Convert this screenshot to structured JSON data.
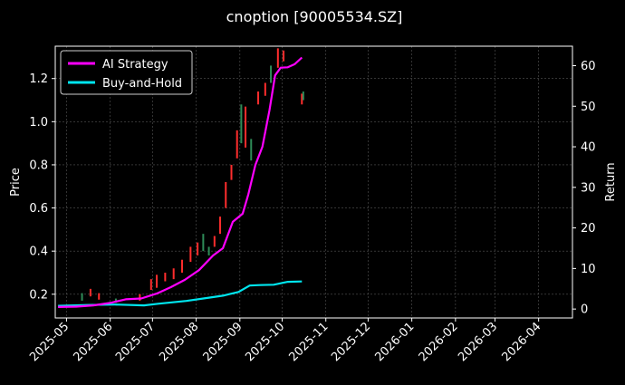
{
  "chart_data": {
    "type": "line",
    "title": "cnoption [90005534.SZ]",
    "ylabel": "Price",
    "y2label": "Return",
    "ylim": [
      0.09,
      1.35
    ],
    "y2lim": [
      -2.2,
      64.8
    ],
    "yticks": [
      "0.2",
      "0.4",
      "0.6",
      "0.8",
      "1.0",
      "1.2"
    ],
    "y2ticks": [
      "0",
      "10",
      "20",
      "30",
      "40",
      "50",
      "60"
    ],
    "xrange": [
      "2025-04-23",
      "2026-04-25"
    ],
    "xticks": [
      "2025-05",
      "2025-06",
      "2025-07",
      "2025-08",
      "2025-09",
      "2025-10",
      "2025-11",
      "2025-12",
      "2026-01",
      "2026-02",
      "2026-03",
      "2026-04"
    ],
    "grid": true,
    "legend_position": "top-left",
    "legend": [
      {
        "label": "AI Strategy",
        "color": "#ff00ff"
      },
      {
        "label": "Buy-and-Hold",
        "color": "#00e5ee"
      }
    ],
    "up_color": "#2e8b57",
    "down_color": "#ff2d2d",
    "series": [
      {
        "name": "AI Strategy",
        "axis": "right",
        "color": "#ff00ff",
        "x": [
          "2025-04-25",
          "2025-05-08",
          "2025-05-20",
          "2025-06-01",
          "2025-06-12",
          "2025-06-23",
          "2025-07-04",
          "2025-07-14",
          "2025-07-24",
          "2025-08-03",
          "2025-08-13",
          "2025-08-20",
          "2025-08-27",
          "2025-09-03",
          "2025-09-07",
          "2025-09-12",
          "2025-09-17",
          "2025-09-22",
          "2025-09-26",
          "2025-09-30",
          "2025-10-05",
          "2025-10-10",
          "2025-10-15"
        ],
        "values": [
          0.5,
          0.6,
          0.9,
          1.5,
          2.4,
          2.6,
          3.8,
          5.4,
          7.2,
          9.6,
          13.2,
          15.0,
          21.5,
          23.5,
          28.3,
          35.5,
          40.0,
          49.0,
          57.6,
          59.5,
          59.6,
          60.4,
          62.0
        ]
      },
      {
        "name": "Buy-and-Hold",
        "axis": "right",
        "color": "#00e5ee",
        "x": [
          "2025-04-25",
          "2025-05-15",
          "2025-06-05",
          "2025-06-25",
          "2025-07-05",
          "2025-07-25",
          "2025-08-10",
          "2025-08-20",
          "2025-08-31",
          "2025-09-08",
          "2025-09-15",
          "2025-09-25",
          "2025-10-05",
          "2025-10-15"
        ],
        "values": [
          0.8,
          1.0,
          1.1,
          0.9,
          1.3,
          2.0,
          2.8,
          3.3,
          4.2,
          5.8,
          5.9,
          6.0,
          6.7,
          6.8
        ]
      }
    ],
    "price_bars": [
      {
        "x": "2025-05-12",
        "low": 0.17,
        "high": 0.205,
        "up": true
      },
      {
        "x": "2025-05-18",
        "low": 0.19,
        "high": 0.225,
        "up": false
      },
      {
        "x": "2025-05-24",
        "low": 0.175,
        "high": 0.205,
        "up": false
      },
      {
        "x": "2025-06-05",
        "low": 0.16,
        "high": 0.18,
        "up": true
      },
      {
        "x": "2025-06-22",
        "low": 0.17,
        "high": 0.2,
        "up": false
      },
      {
        "x": "2025-06-30",
        "low": 0.22,
        "high": 0.27,
        "up": false
      },
      {
        "x": "2025-07-04",
        "low": 0.23,
        "high": 0.29,
        "up": false
      },
      {
        "x": "2025-07-10",
        "low": 0.26,
        "high": 0.3,
        "up": false
      },
      {
        "x": "2025-07-16",
        "low": 0.27,
        "high": 0.32,
        "up": false
      },
      {
        "x": "2025-07-22",
        "low": 0.3,
        "high": 0.36,
        "up": false
      },
      {
        "x": "2025-07-28",
        "low": 0.35,
        "high": 0.42,
        "up": false
      },
      {
        "x": "2025-08-02",
        "low": 0.38,
        "high": 0.44,
        "up": false
      },
      {
        "x": "2025-08-06",
        "low": 0.4,
        "high": 0.48,
        "up": true
      },
      {
        "x": "2025-08-10",
        "low": 0.38,
        "high": 0.42,
        "up": true
      },
      {
        "x": "2025-08-14",
        "low": 0.42,
        "high": 0.47,
        "up": false
      },
      {
        "x": "2025-08-18",
        "low": 0.48,
        "high": 0.56,
        "up": false
      },
      {
        "x": "2025-08-22",
        "low": 0.6,
        "high": 0.72,
        "up": false
      },
      {
        "x": "2025-08-26",
        "low": 0.73,
        "high": 0.8,
        "up": false
      },
      {
        "x": "2025-08-30",
        "low": 0.83,
        "high": 0.96,
        "up": false
      },
      {
        "x": "2025-09-02",
        "low": 0.9,
        "high": 1.08,
        "up": true
      },
      {
        "x": "2025-09-05",
        "low": 0.88,
        "high": 1.07,
        "up": false
      },
      {
        "x": "2025-09-09",
        "low": 0.82,
        "high": 0.92,
        "up": true
      },
      {
        "x": "2025-09-14",
        "low": 1.08,
        "high": 1.14,
        "up": false
      },
      {
        "x": "2025-09-19",
        "low": 1.12,
        "high": 1.18,
        "up": false
      },
      {
        "x": "2025-09-23",
        "low": 1.18,
        "high": 1.26,
        "up": true
      },
      {
        "x": "2025-09-28",
        "low": 1.25,
        "high": 1.34,
        "up": false
      },
      {
        "x": "2025-10-02",
        "low": 1.28,
        "high": 1.33,
        "up": false
      },
      {
        "x": "2025-10-15",
        "low": 1.08,
        "high": 1.13,
        "up": false
      },
      {
        "x": "2025-10-16",
        "low": 1.1,
        "high": 1.14,
        "up": true
      }
    ]
  }
}
